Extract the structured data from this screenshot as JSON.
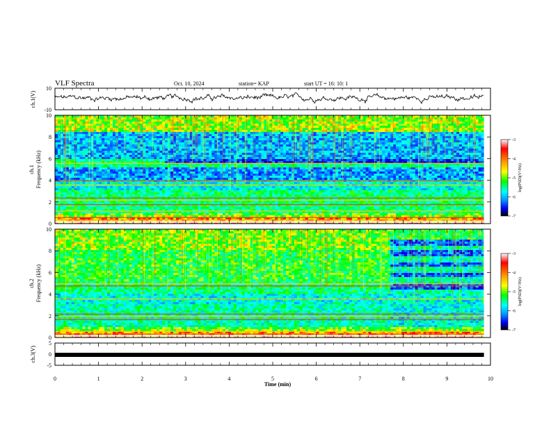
{
  "header": {
    "title": "VLF Spectra",
    "date": "Oct. 10, 2024",
    "station": "station= KAP",
    "start": "start UT =  16: 10: 1"
  },
  "colorbar": {
    "label": "log(PSD)(V²/Hz)",
    "ticks": [
      "-3",
      "-4",
      "-5",
      "-6",
      "-7"
    ],
    "colors": [
      "#ffffff",
      "#ff0000",
      "#ffa000",
      "#ffff00",
      "#00ff00",
      "#00ffff",
      "#0090ff",
      "#0000ff",
      "#000000"
    ]
  },
  "chart_data": [
    {
      "type": "line",
      "panel": "ch1 waveform",
      "ylabel": "ch.1(V)",
      "ylim": [
        -10,
        10
      ],
      "yticks": [
        "10",
        "-10"
      ],
      "x_range_min": [
        0,
        9.85
      ],
      "note_values": "noisy waveform fluctuating roughly between -4 and 6 V, mean ~1 V"
    },
    {
      "type": "heatmap",
      "panel": "ch1 spectrogram",
      "ylabel": "ch.1 Frequency (kHz)",
      "ylim": [
        0,
        10
      ],
      "yticks": [
        "0",
        "2",
        "4",
        "6",
        "8",
        "10"
      ],
      "x_range_min": [
        0,
        9.85
      ]
    },
    {
      "type": "heatmap",
      "panel": "ch2 spectrogram",
      "ylabel": "ch.2 Frequency (kHz)",
      "ylim": [
        0,
        10
      ],
      "yticks": [
        "0",
        "2",
        "4",
        "6",
        "8",
        "10"
      ],
      "x_range_min": [
        0,
        9.85
      ],
      "change_at_min": 7.7
    },
    {
      "type": "line",
      "panel": "ch3 waveform",
      "ylabel": "ch.3(V)",
      "ylim": [
        -5,
        5
      ],
      "yticks": [
        "5",
        "0",
        "-5"
      ],
      "x_range_min": [
        0,
        9.85
      ],
      "level": -0.3
    }
  ],
  "xaxis": {
    "label": "Time (min)",
    "range": [
      0,
      10
    ],
    "ticks": [
      "0",
      "1",
      "2",
      "3",
      "4",
      "5",
      "6",
      "7",
      "8",
      "9",
      "10"
    ]
  }
}
